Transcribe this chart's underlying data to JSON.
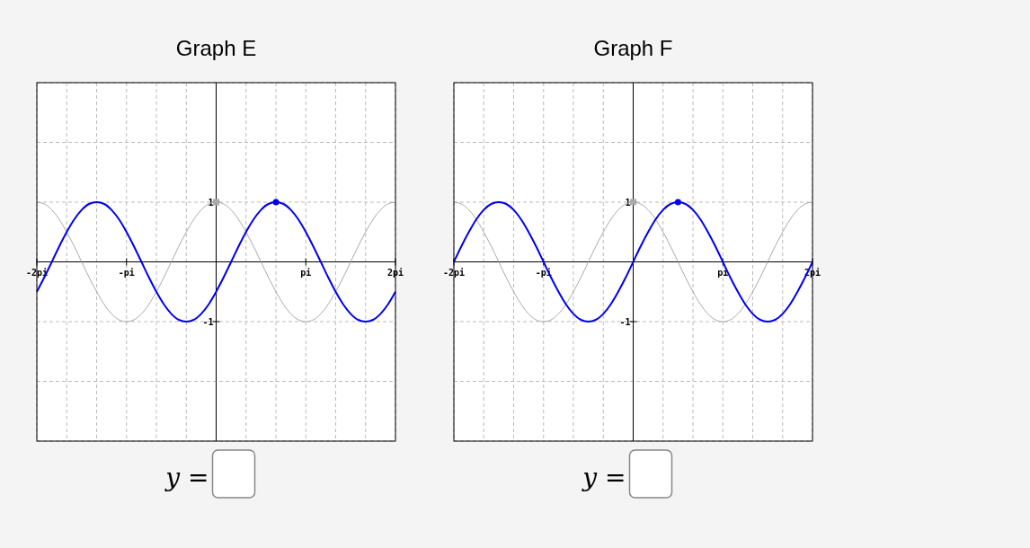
{
  "chart_data": [
    {
      "type": "line",
      "title": "Graph E",
      "xlim": [
        -2,
        2
      ],
      "ylim": [
        -3,
        3
      ],
      "xticks": [
        {
          "value": -2,
          "label": "-2pi"
        },
        {
          "value": -1.667,
          "label": null
        },
        {
          "value": -1.333,
          "label": null
        },
        {
          "value": -1,
          "label": "-pi"
        },
        {
          "value": -0.667,
          "label": null
        },
        {
          "value": -0.333,
          "label": null
        },
        {
          "value": 0,
          "label": null
        },
        {
          "value": 0.333,
          "label": null
        },
        {
          "value": 0.667,
          "label": null
        },
        {
          "value": 1,
          "label": "pi"
        },
        {
          "value": 1.333,
          "label": null
        },
        {
          "value": 1.667,
          "label": null
        },
        {
          "value": 2,
          "label": "2pi"
        }
      ],
      "yticks": [
        {
          "value": -3,
          "label": null
        },
        {
          "value": -2,
          "label": null
        },
        {
          "value": -1,
          "label": "-1"
        },
        {
          "value": 0,
          "label": null
        },
        {
          "value": 1,
          "label": "1"
        },
        {
          "value": 2,
          "label": null
        },
        {
          "value": 3,
          "label": null
        }
      ],
      "grid": true,
      "annotations": [
        "y ="
      ],
      "x": [
        -2,
        -1.917,
        -1.833,
        -1.75,
        -1.667,
        -1.583,
        -1.5,
        -1.417,
        -1.333,
        -1.25,
        -1.167,
        -1.083,
        -1,
        -0.917,
        -0.833,
        -0.75,
        -0.667,
        -0.583,
        -0.5,
        -0.417,
        -0.333,
        -0.25,
        -0.167,
        -0.083,
        0,
        0.083,
        0.167,
        0.25,
        0.333,
        0.417,
        0.5,
        0.583,
        0.667,
        0.75,
        0.833,
        0.917,
        1,
        1.083,
        1.167,
        1.25,
        1.333,
        1.417,
        1.5,
        1.583,
        1.667,
        1.75,
        1.833,
        1.917,
        2
      ],
      "series": [
        {
          "color": "#aaaaaa",
          "values": [
            1,
            0.97,
            0.87,
            0.71,
            0.5,
            0.26,
            0,
            -0.26,
            -0.5,
            -0.71,
            -0.87,
            -0.97,
            -1,
            -0.97,
            -0.87,
            -0.71,
            -0.5,
            -0.26,
            0,
            0.26,
            0.5,
            0.71,
            0.87,
            0.97,
            1,
            0.97,
            0.87,
            0.71,
            0.5,
            0.26,
            0,
            -0.26,
            -0.5,
            -0.71,
            -0.87,
            -0.97,
            -1,
            -0.97,
            -0.87,
            -0.71,
            -0.5,
            -0.26,
            0,
            0.26,
            0.5,
            0.71,
            0.87,
            0.97,
            1
          ]
        },
        {
          "color": "#0000ee",
          "values": [
            -0.5,
            -0.26,
            0,
            0.26,
            0.5,
            0.71,
            0.87,
            0.97,
            1,
            0.97,
            0.87,
            0.71,
            0.5,
            0.26,
            0,
            -0.26,
            -0.5,
            -0.71,
            -0.87,
            -0.97,
            -1,
            -0.97,
            -0.87,
            -0.71,
            -0.5,
            -0.26,
            0,
            0.26,
            0.5,
            0.71,
            0.87,
            0.97,
            1,
            0.97,
            0.87,
            0.71,
            0.5,
            0.26,
            0,
            -0.26,
            -0.5,
            -0.71,
            -0.87,
            -0.97,
            -1,
            -0.97,
            -0.87,
            -0.71,
            -0.5
          ]
        },
        {
          "type": "scatter",
          "marker": "square",
          "color": "#aaaaaa",
          "x": [
            0
          ],
          "values": [
            1
          ]
        },
        {
          "type": "scatter",
          "marker": "circle",
          "color": "#0000ee",
          "x": [
            0.667
          ],
          "values": [
            1
          ]
        }
      ]
    },
    {
      "type": "line",
      "title": "Graph F",
      "xlim": [
        -2,
        2
      ],
      "ylim": [
        -3,
        3
      ],
      "xticks": [
        {
          "value": -2,
          "label": "-2pi"
        },
        {
          "value": -1.667,
          "label": null
        },
        {
          "value": -1.333,
          "label": null
        },
        {
          "value": -1,
          "label": "-pi"
        },
        {
          "value": -0.667,
          "label": null
        },
        {
          "value": -0.333,
          "label": null
        },
        {
          "value": 0,
          "label": null
        },
        {
          "value": 0.333,
          "label": null
        },
        {
          "value": 0.667,
          "label": null
        },
        {
          "value": 1,
          "label": "pi"
        },
        {
          "value": 1.333,
          "label": null
        },
        {
          "value": 1.667,
          "label": null
        },
        {
          "value": 2,
          "label": "2pi"
        }
      ],
      "yticks": [
        {
          "value": -3,
          "label": null
        },
        {
          "value": -2,
          "label": null
        },
        {
          "value": -1,
          "label": "-1"
        },
        {
          "value": 0,
          "label": null
        },
        {
          "value": 1,
          "label": "1"
        },
        {
          "value": 2,
          "label": null
        },
        {
          "value": 3,
          "label": null
        }
      ],
      "grid": true,
      "annotations": [
        "y ="
      ],
      "x": [
        -2,
        -1.917,
        -1.833,
        -1.75,
        -1.667,
        -1.583,
        -1.5,
        -1.417,
        -1.333,
        -1.25,
        -1.167,
        -1.083,
        -1,
        -0.917,
        -0.833,
        -0.75,
        -0.667,
        -0.583,
        -0.5,
        -0.417,
        -0.333,
        -0.25,
        -0.167,
        -0.083,
        0,
        0.083,
        0.167,
        0.25,
        0.333,
        0.417,
        0.5,
        0.583,
        0.667,
        0.75,
        0.833,
        0.917,
        1,
        1.083,
        1.167,
        1.25,
        1.333,
        1.417,
        1.5,
        1.583,
        1.667,
        1.75,
        1.833,
        1.917,
        2
      ],
      "series": [
        {
          "color": "#aaaaaa",
          "values": [
            1,
            0.97,
            0.87,
            0.71,
            0.5,
            0.26,
            0,
            -0.26,
            -0.5,
            -0.71,
            -0.87,
            -0.97,
            -1,
            -0.97,
            -0.87,
            -0.71,
            -0.5,
            -0.26,
            0,
            0.26,
            0.5,
            0.71,
            0.87,
            0.97,
            1,
            0.97,
            0.87,
            0.71,
            0.5,
            0.26,
            0,
            -0.26,
            -0.5,
            -0.71,
            -0.87,
            -0.97,
            -1,
            -0.97,
            -0.87,
            -0.71,
            -0.5,
            -0.26,
            0,
            0.26,
            0.5,
            0.71,
            0.87,
            0.97,
            1
          ]
        },
        {
          "color": "#0000ee",
          "values": [
            0,
            0.26,
            0.5,
            0.71,
            0.87,
            0.97,
            1,
            0.97,
            0.87,
            0.71,
            0.5,
            0.26,
            0,
            -0.26,
            -0.5,
            -0.71,
            -0.87,
            -0.97,
            -1,
            -0.97,
            -0.87,
            -0.71,
            -0.5,
            -0.26,
            0,
            0.26,
            0.5,
            0.71,
            0.87,
            0.97,
            1,
            0.97,
            0.87,
            0.71,
            0.5,
            0.26,
            0,
            -0.26,
            -0.5,
            -0.71,
            -0.87,
            -0.97,
            -1,
            -0.97,
            -0.87,
            -0.71,
            -0.5,
            -0.26,
            0
          ]
        },
        {
          "type": "scatter",
          "marker": "square",
          "color": "#aaaaaa",
          "x": [
            0
          ],
          "values": [
            1
          ]
        },
        {
          "type": "scatter",
          "marker": "circle",
          "color": "#0000ee",
          "x": [
            0.5
          ],
          "values": [
            1
          ]
        }
      ]
    }
  ]
}
